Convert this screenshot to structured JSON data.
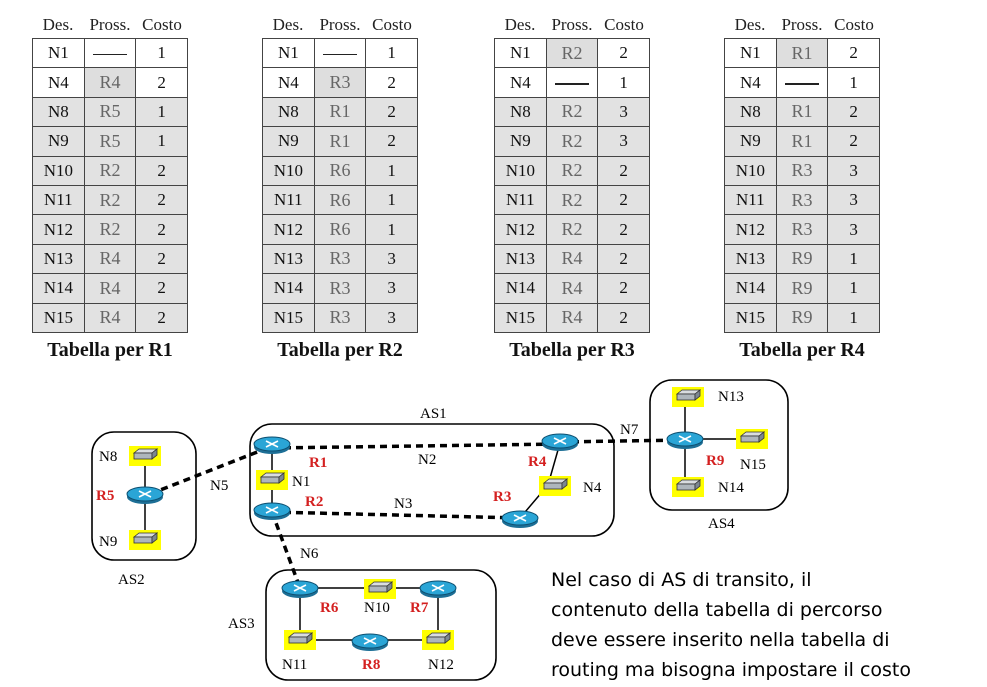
{
  "headers": {
    "dest": "Des.",
    "next": "Pross.",
    "cost": "Costo"
  },
  "tables": [
    {
      "caption": "Tabella per R1",
      "rows": [
        [
          "N1",
          "—",
          "1"
        ],
        [
          "N4",
          "R4",
          "2"
        ],
        [
          "N8",
          "R5",
          "1"
        ],
        [
          "N9",
          "R5",
          "1"
        ],
        [
          "N10",
          "R2",
          "2"
        ],
        [
          "N11",
          "R2",
          "2"
        ],
        [
          "N12",
          "R2",
          "2"
        ],
        [
          "N13",
          "R4",
          "2"
        ],
        [
          "N14",
          "R4",
          "2"
        ],
        [
          "N15",
          "R4",
          "2"
        ]
      ]
    },
    {
      "caption": "Tabella per R2",
      "rows": [
        [
          "N1",
          "—",
          "1"
        ],
        [
          "N4",
          "R3",
          "2"
        ],
        [
          "N8",
          "R1",
          "2"
        ],
        [
          "N9",
          "R1",
          "2"
        ],
        [
          "N10",
          "R6",
          "1"
        ],
        [
          "N11",
          "R6",
          "1"
        ],
        [
          "N12",
          "R6",
          "1"
        ],
        [
          "N13",
          "R3",
          "3"
        ],
        [
          "N14",
          "R3",
          "3"
        ],
        [
          "N15",
          "R3",
          "3"
        ]
      ]
    },
    {
      "caption": "Tabella per R3",
      "rows": [
        [
          "N1",
          "R2",
          "2"
        ],
        [
          "N4",
          "—",
          "1"
        ],
        [
          "N8",
          "R2",
          "3"
        ],
        [
          "N9",
          "R2",
          "3"
        ],
        [
          "N10",
          "R2",
          "2"
        ],
        [
          "N11",
          "R2",
          "2"
        ],
        [
          "N12",
          "R2",
          "2"
        ],
        [
          "N13",
          "R4",
          "2"
        ],
        [
          "N14",
          "R4",
          "2"
        ],
        [
          "N15",
          "R4",
          "2"
        ]
      ]
    },
    {
      "caption": "Tabella per R4",
      "rows": [
        [
          "N1",
          "R1",
          "2"
        ],
        [
          "N4",
          "—",
          "1"
        ],
        [
          "N8",
          "R1",
          "2"
        ],
        [
          "N9",
          "R1",
          "2"
        ],
        [
          "N10",
          "R3",
          "3"
        ],
        [
          "N11",
          "R3",
          "3"
        ],
        [
          "N12",
          "R3",
          "3"
        ],
        [
          "N13",
          "R9",
          "1"
        ],
        [
          "N14",
          "R9",
          "1"
        ],
        [
          "N15",
          "R9",
          "1"
        ]
      ]
    }
  ],
  "network": {
    "as_labels": {
      "as1": "AS1",
      "as2": "AS2",
      "as3": "AS3",
      "as4": "AS4"
    },
    "routers": {
      "r1": "R1",
      "r2": "R2",
      "r3": "R3",
      "r4": "R4",
      "r5": "R5",
      "r6": "R6",
      "r7": "R7",
      "r8": "R8",
      "r9": "R9"
    },
    "nets": {
      "n1": "N1",
      "n2": "N2",
      "n3": "N3",
      "n4": "N4",
      "n5": "N5",
      "n6": "N6",
      "n7": "N7",
      "n8": "N8",
      "n9": "N9",
      "n10": "N10",
      "n11": "N11",
      "n12": "N12",
      "n13": "N13",
      "n14": "N14",
      "n15": "N15"
    },
    "colors": {
      "router": "#2aa5d6",
      "switch_bg": "#ffff00",
      "router_label": "#d42020"
    }
  },
  "note_lines": [
    "Nel caso di AS di transito, il",
    "contenuto della tabella di percorso",
    "deve essere inserito nella tabella di",
    "routing ma bisogna impostare il costo"
  ]
}
